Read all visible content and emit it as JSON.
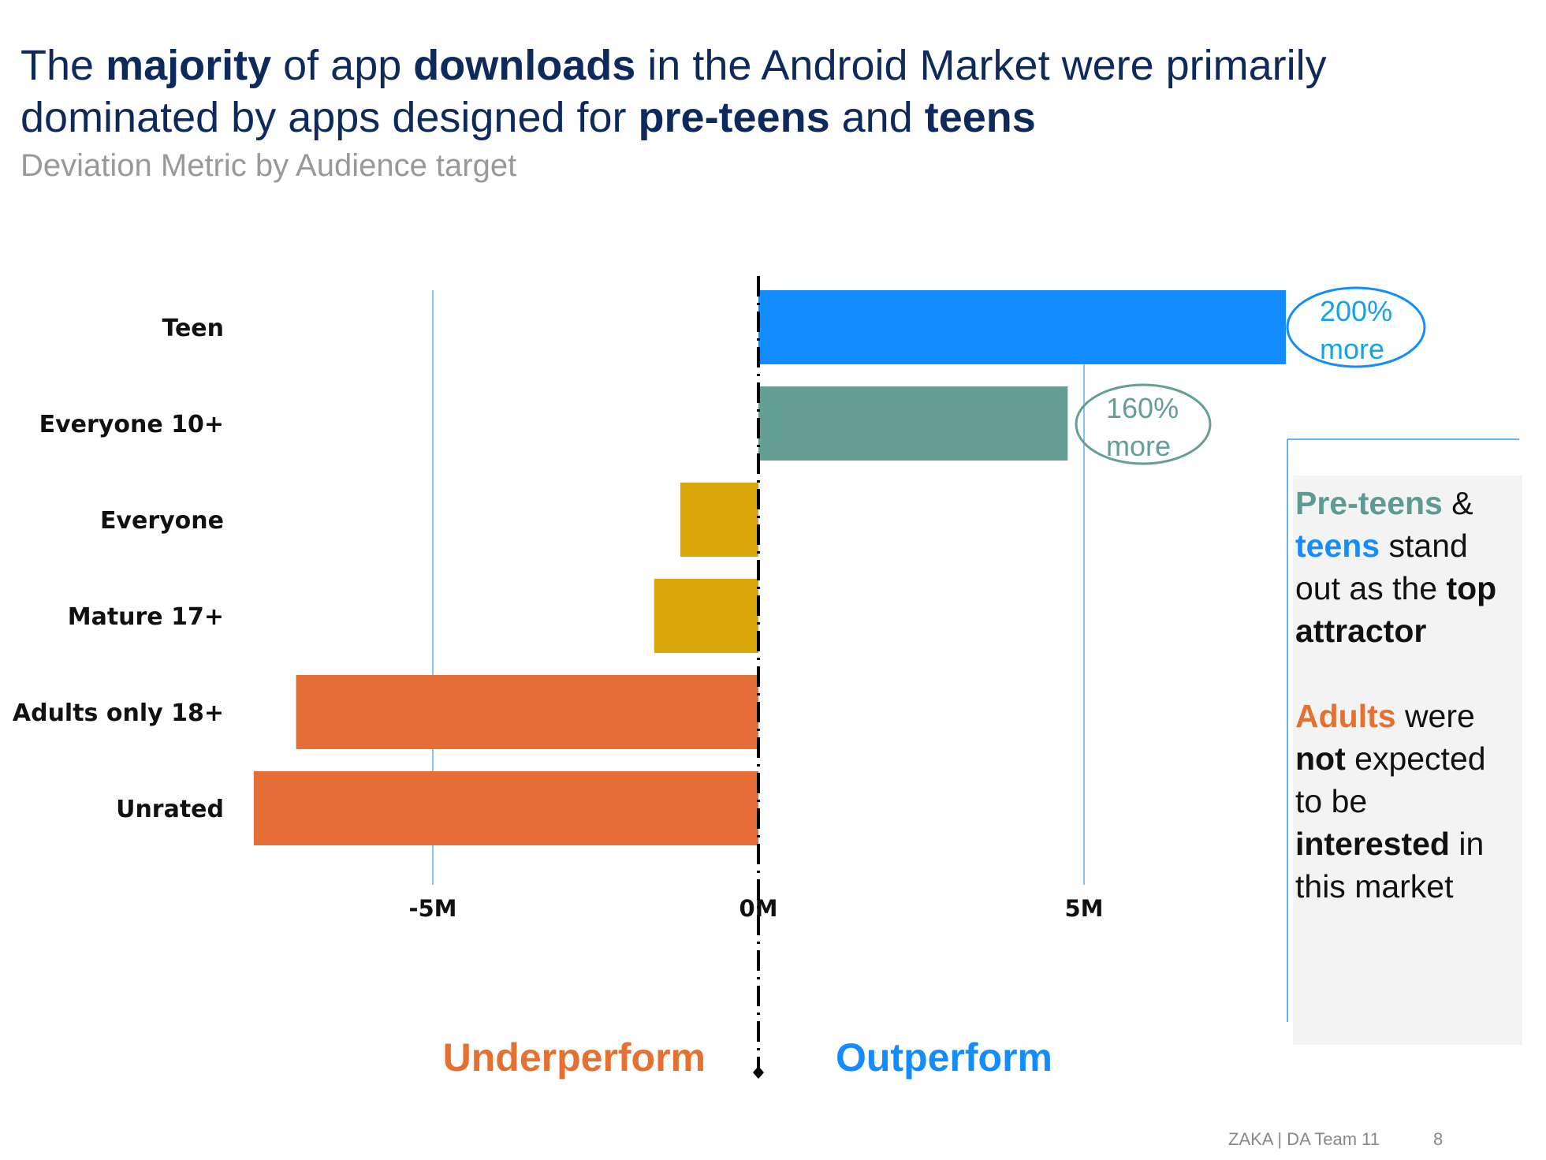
{
  "slide": {
    "title_parts": [
      {
        "text": "The ",
        "bold": false
      },
      {
        "text": "majority",
        "bold": true
      },
      {
        "text": " of app ",
        "bold": false
      },
      {
        "text": "downloads",
        "bold": true
      },
      {
        "text": " in the Android Market were primarily dominated by apps designed for ",
        "bold": false
      },
      {
        "text": "pre-teens",
        "bold": true
      },
      {
        "text": " and ",
        "bold": false
      },
      {
        "text": "teens",
        "bold": true
      }
    ],
    "subtitle": "Deviation Metric by Audience target",
    "underperform_label": "Underperform",
    "outperform_label": "Outperform",
    "callouts": {
      "teen": {
        "line1": "200%",
        "line2": "more"
      },
      "everyone10": {
        "line1": "160%",
        "line2": "more"
      }
    },
    "insight": {
      "p1": [
        {
          "text": "Pre-teens",
          "style": "teal"
        },
        {
          "text": " & ",
          "style": ""
        },
        {
          "text": "teens",
          "style": "blue"
        },
        {
          "text": " stand out as the ",
          "style": ""
        },
        {
          "text": "top attractor",
          "style": "bold"
        }
      ],
      "p2": [
        {
          "text": "Adults",
          "style": "orange"
        },
        {
          "text": " were ",
          "style": ""
        },
        {
          "text": "not",
          "style": "bold"
        },
        {
          "text": " expected to be ",
          "style": ""
        },
        {
          "text": "interested",
          "style": "bold"
        },
        {
          "text": " in this market",
          "style": ""
        }
      ]
    },
    "footer": {
      "org": "ZAKA |  DA Team 11",
      "page": "8"
    },
    "colors": {
      "teen": "#138dfd",
      "preteen": "#649e94",
      "neutral": "#d9a70a",
      "adult": "#e56e37",
      "title": "#0e2a5c"
    }
  },
  "chart_data": {
    "type": "bar",
    "orientation": "horizontal",
    "title": "Deviation Metric by Audience target",
    "categories": [
      "Teen",
      "Everyone 10+",
      "Everyone",
      "Mature 17+",
      "Adults only 18+",
      "Unrated"
    ],
    "values": [
      8.1,
      4.75,
      -1.2,
      -1.6,
      -7.1,
      -7.75
    ],
    "units": "M",
    "xlim": [
      -7.75,
      8.1
    ],
    "xticks": [
      -5,
      0,
      5
    ],
    "xtick_labels": [
      "-5M",
      "0M",
      "5M"
    ],
    "bar_colors": [
      "#138dfd",
      "#649e94",
      "#d9a70a",
      "#d9a70a",
      "#e56e37",
      "#e56e37"
    ],
    "gridlines": [
      -5,
      5
    ],
    "reference_line": 0
  }
}
